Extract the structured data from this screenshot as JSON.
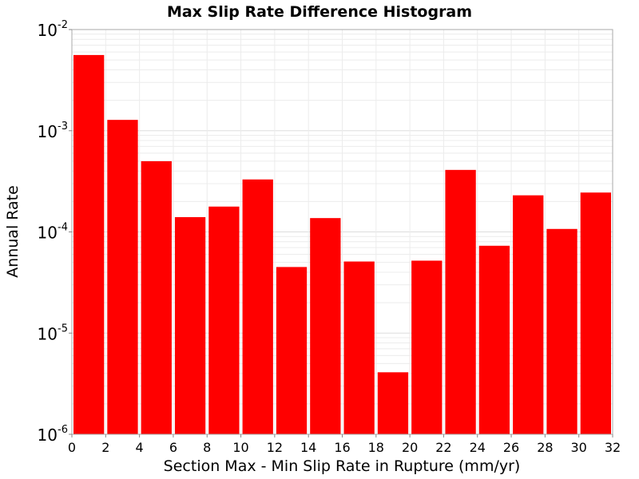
{
  "chart_data": {
    "type": "bar",
    "title": "Max Slip Rate Difference Histogram",
    "xlabel": "Section Max - Min Slip Rate in Rupture (mm/yr)",
    "ylabel": "Annual Rate",
    "xlim": [
      0,
      32
    ],
    "ylim": [
      1e-06,
      0.01
    ],
    "yscale": "log",
    "bar_color": "#ff0000",
    "grid": true,
    "x_ticks": [
      "0",
      "2",
      "4",
      "6",
      "8",
      "10",
      "12",
      "14",
      "16",
      "18",
      "20",
      "22",
      "24",
      "26",
      "28",
      "30",
      "32"
    ],
    "y_ticks": [
      {
        "value": 1e-06,
        "base": "10",
        "exp": "-6"
      },
      {
        "value": 1e-05,
        "base": "10",
        "exp": "-5"
      },
      {
        "value": 0.0001,
        "base": "10",
        "exp": "-4"
      },
      {
        "value": 0.001,
        "base": "10",
        "exp": "-3"
      },
      {
        "value": 0.01,
        "base": "10",
        "exp": "-2"
      }
    ],
    "bin_width": 2,
    "x": [
      1,
      3,
      5,
      7,
      9,
      11,
      13,
      15,
      17,
      19,
      21,
      23,
      25,
      27,
      29,
      31
    ],
    "values": [
      0.0056,
      0.00128,
      0.0005,
      0.00014,
      0.000178,
      0.00033,
      4.5e-05,
      0.000137,
      5.1e-05,
      4.1e-06,
      5.2e-05,
      0.00041,
      7.3e-05,
      0.00023,
      0.000107,
      0.000245
    ]
  }
}
